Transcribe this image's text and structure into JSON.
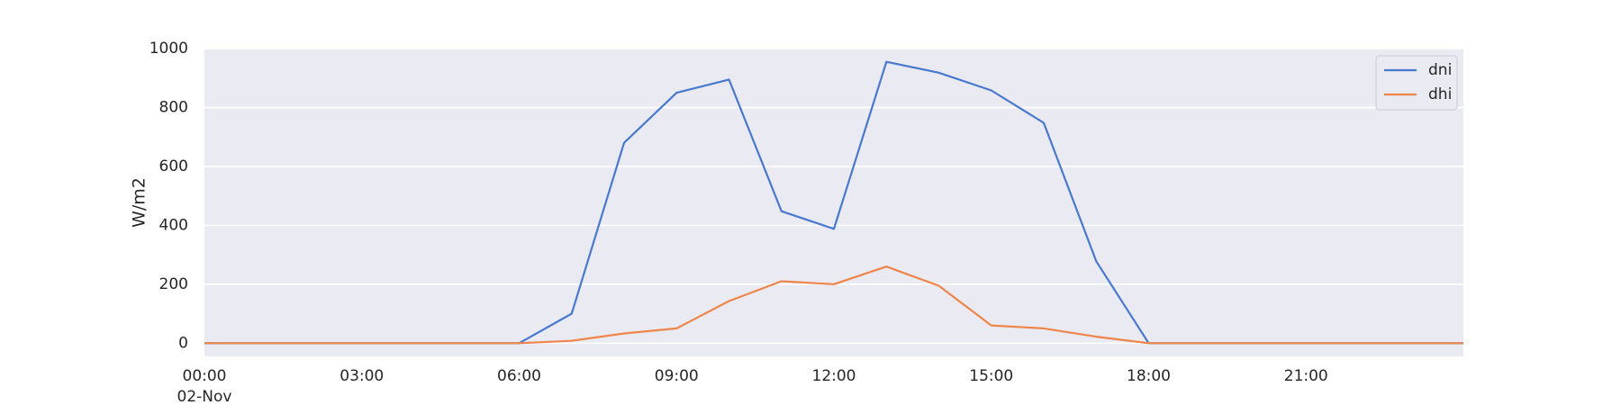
{
  "chart_data": {
    "type": "line",
    "title": "",
    "xlabel": "",
    "ylabel": "W/m2",
    "x": [
      "00:00",
      "01:00",
      "02:00",
      "03:00",
      "04:00",
      "05:00",
      "06:00",
      "07:00",
      "08:00",
      "09:00",
      "10:00",
      "11:00",
      "12:00",
      "13:00",
      "14:00",
      "15:00",
      "16:00",
      "17:00",
      "18:00",
      "19:00",
      "20:00",
      "21:00",
      "22:00",
      "23:00"
    ],
    "x_ticks": [
      "00:00",
      "03:00",
      "06:00",
      "09:00",
      "12:00",
      "15:00",
      "18:00",
      "21:00"
    ],
    "x_date_label": "02-Nov",
    "y_ticks": [
      "0",
      "200",
      "400",
      "600",
      "800",
      "1000"
    ],
    "ylim": [
      -45,
      1000
    ],
    "grid": true,
    "legend_position": "top-right",
    "series": [
      {
        "name": "dni",
        "color": "#4878d0",
        "values": [
          0,
          0,
          0,
          0,
          0,
          0,
          0,
          100,
          680,
          850,
          895,
          448,
          388,
          955,
          918,
          858,
          748,
          278,
          0,
          0,
          0,
          0,
          0,
          0
        ]
      },
      {
        "name": "dhi",
        "color": "#ee854a",
        "values": [
          0,
          0,
          0,
          0,
          0,
          0,
          0,
          8,
          33,
          50,
          143,
          210,
          200,
          260,
          195,
          60,
          50,
          22,
          0,
          0,
          0,
          0,
          0,
          0
        ]
      }
    ]
  }
}
